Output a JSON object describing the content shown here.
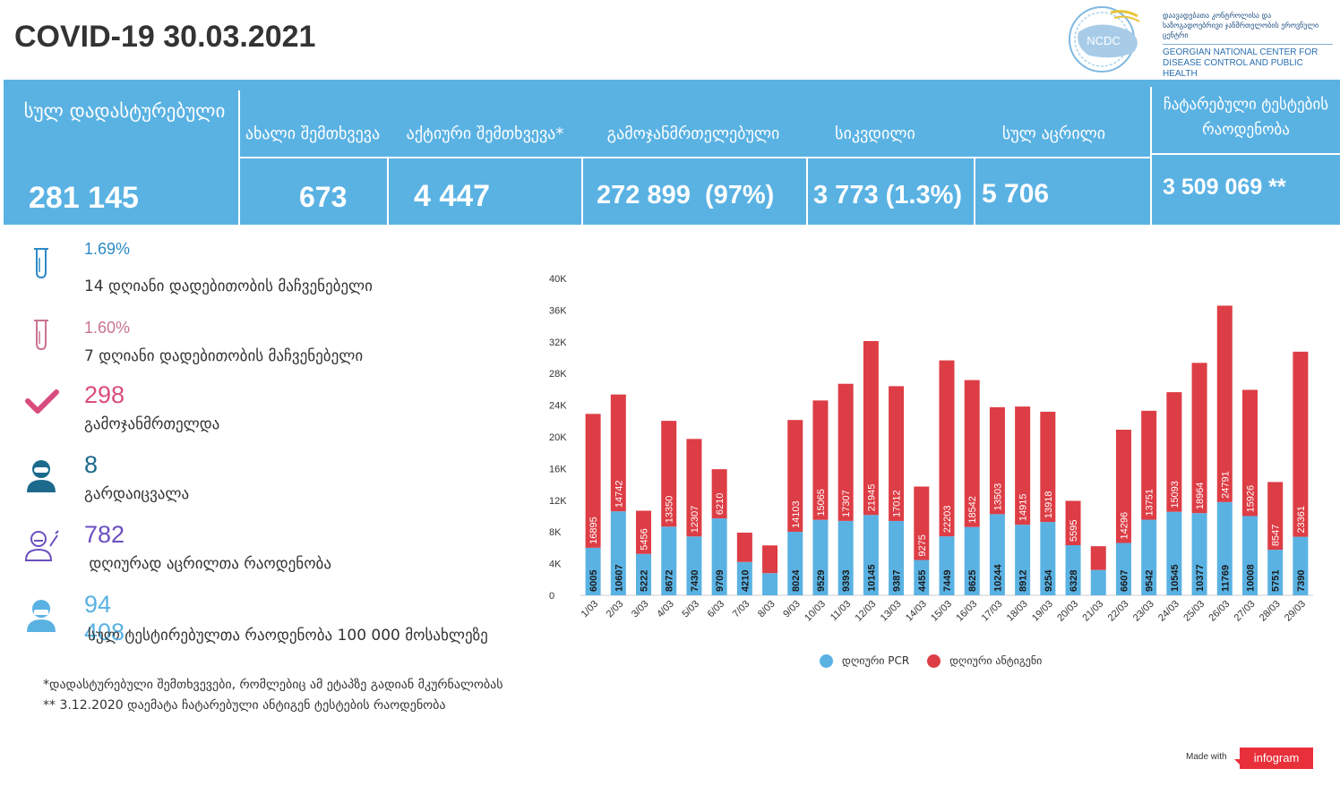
{
  "header": {
    "title": "COVID-19 30.03.2021",
    "logo_abbr": "NCDC",
    "logo_text_ka": "დაავადებათა კონტროლისა და საზოგადოებრივი ჯანმრთელობის ეროვნული ცენტრი",
    "logo_text_en": "GEORGIAN NATIONAL CENTER FOR DISEASE CONTROL AND PUBLIC HEALTH"
  },
  "banner": {
    "total_confirmed_label": "სულ დადასტურებული",
    "total_confirmed_value": "281 145",
    "new_cases_label": "ახალი შემთხვევა",
    "new_cases_value": "673",
    "active_cases_label": "აქტიური შემთხვევა*",
    "active_cases_value": "4 447",
    "recovered_label": "გამოჯანმრთელებული",
    "recovered_value": "272 899  (97%)",
    "deaths_label": "სიკვდილი",
    "deaths_value": "3 773 (1.3%)",
    "vaccinated_label": "სულ აცრილი",
    "vaccinated_value": "5 706",
    "tests_label": "ჩატარებული ტესტების რაოდენობა",
    "tests_value": "3 509 069 **"
  },
  "stats": [
    {
      "value": "1.69%",
      "label": "14  დღიანი დადებითობის მაჩვენებელი",
      "icon": "test-tube-icon",
      "color": "#2d8ac7"
    },
    {
      "value": "1.60%",
      "label": "7 დღიანი დადებითობის მაჩვენებელი",
      "icon": "test-tube-icon",
      "color": "#c9748f"
    },
    {
      "value": "298",
      "label": "გამოჯანმრთელდა",
      "icon": "checkmark-icon",
      "color": "#d94c7e"
    },
    {
      "value": "8",
      "label": "გარდაიცვალა",
      "icon": "person-icon",
      "color": "#1b6a8c"
    },
    {
      "value": "782",
      "label": " დღიურად აცრილთა რაოდენობა",
      "icon": "doctor-icon",
      "color": "#6a4fbf"
    },
    {
      "value": "94 408",
      "label": "სულ ტესტირებულთა რაოდენობა 100 000 მოსახლეზე",
      "icon": "masked-person-icon",
      "color": "#5ab2e3"
    }
  ],
  "footnotes": {
    "note1": "*დადასტურებული შემთხვევები, რომლებიც ამ ეტაპზე გადიან მკურნალობას",
    "note2": "** 3.12.2020 დაემატა ჩატარებული ანტიგენ ტესტების რაოდენობა"
  },
  "chart_data": {
    "type": "bar",
    "stacked": true,
    "categories": [
      "1/03",
      "2/03",
      "3/03",
      "4/03",
      "5/03",
      "6/03",
      "7/03",
      "8/03",
      "9/03",
      "10/03",
      "11/03",
      "12/03",
      "13/03",
      "14/03",
      "15/03",
      "16/03",
      "17/03",
      "18/03",
      "19/03",
      "20/03",
      "21/03",
      "22/03",
      "23/03",
      "24/03",
      "25/03",
      "26/03",
      "27/03",
      "28/03",
      "29/03"
    ],
    "series": [
      {
        "name": "დღიური PCR",
        "color": "#5ab2e3",
        "values": [
          6005,
          10607,
          5222,
          8672,
          7430,
          9709,
          4210,
          2800,
          8024,
          9529,
          9393,
          10145,
          9387,
          4455,
          7449,
          8625,
          10244,
          8912,
          9254,
          6328,
          3200,
          6607,
          9542,
          10545,
          10377,
          11769,
          10008,
          5751,
          7390
        ],
        "labels": [
          "6005",
          "10607",
          "5222",
          "8672",
          "7430",
          "9709",
          "4210",
          "",
          "8024",
          "9529",
          "9393",
          "10145",
          "9387",
          "4455",
          "7449",
          "8625",
          "10244",
          "8912",
          "9254",
          "6328",
          "",
          "6607",
          "9542",
          "10545",
          "10377",
          "11769",
          "10008",
          "5751",
          "7390"
        ]
      },
      {
        "name": "დღიური ანტიგენი",
        "color": "#dd3d45",
        "values": [
          16895,
          14742,
          5456,
          13350,
          12307,
          6210,
          3700,
          3500,
          14103,
          15065,
          17307,
          21945,
          17012,
          9275,
          22203,
          18542,
          13503,
          14915,
          13918,
          5595,
          3000,
          14296,
          13751,
          15093,
          18964,
          24791,
          15926,
          8547,
          23361
        ],
        "labels": [
          "16895",
          "14742",
          "5456",
          "13350",
          "12307",
          "6210",
          "",
          "",
          "14103",
          "15065",
          "17307",
          "21945",
          "17012",
          "9275",
          "22203",
          "18542",
          "13503",
          "14915",
          "13918",
          "5595",
          "",
          "14296",
          "13751",
          "15093",
          "18964",
          "24791",
          "15926",
          "8547",
          "23361"
        ]
      }
    ],
    "ylim": [
      0,
      40000
    ],
    "yticks": [
      "0",
      "4K",
      "8K",
      "12K",
      "16K",
      "20K",
      "24K",
      "28K",
      "32K",
      "36K",
      "40K"
    ],
    "grid": false,
    "legend_position": "bottom"
  },
  "footer": {
    "made_with": "Made with",
    "brand": "infogram"
  }
}
